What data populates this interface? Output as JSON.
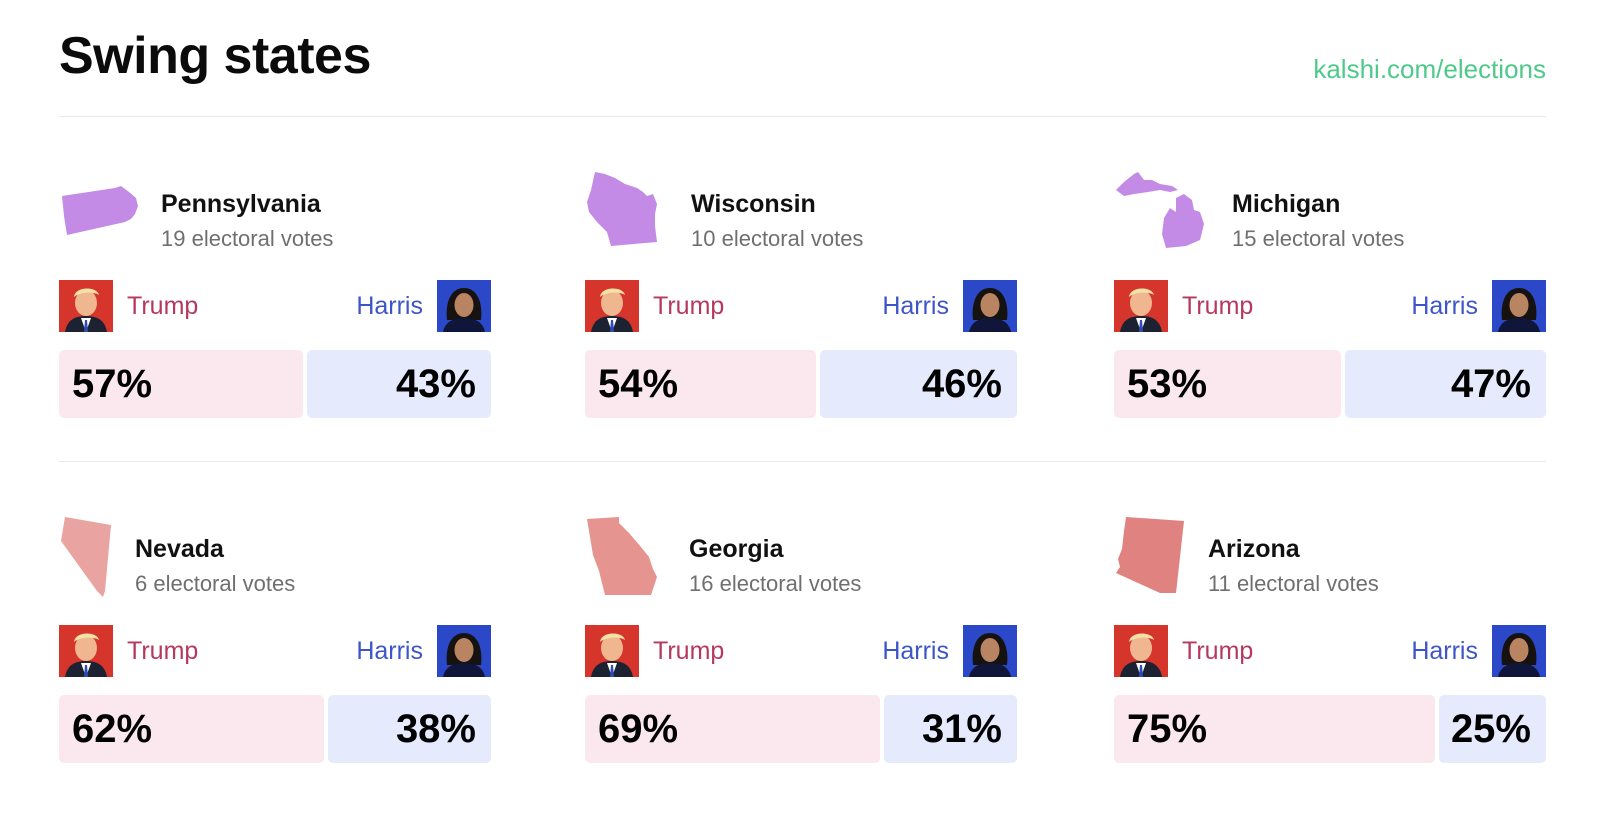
{
  "header": {
    "title": "Swing states",
    "site": "kalshi.com/elections"
  },
  "colors": {
    "trump_text": "#b5395e",
    "harris_text": "#3d55c8",
    "trump_bar": "#fbe8ee",
    "harris_bar": "#e5ebfd",
    "link": "#4fc98a",
    "state_purple": "#c38ae6",
    "state_red": "#e79b98"
  },
  "states": [
    {
      "name": "Pennsylvania",
      "votes": "19 electoral votes",
      "trump_name": "Trump",
      "harris_name": "Harris",
      "trump_pct": "57%",
      "harris_pct": "43%",
      "trump_share": 0.57,
      "shape_color": "#c38ae6",
      "shape_icon": "pennsylvania-shape-icon"
    },
    {
      "name": "Wisconsin",
      "votes": "10 electoral votes",
      "trump_name": "Trump",
      "harris_name": "Harris",
      "trump_pct": "54%",
      "harris_pct": "46%",
      "trump_share": 0.54,
      "shape_color": "#c38ae6",
      "shape_icon": "wisconsin-shape-icon"
    },
    {
      "name": "Michigan",
      "votes": "15 electoral votes",
      "trump_name": "Trump",
      "harris_name": "Harris",
      "trump_pct": "53%",
      "harris_pct": "47%",
      "trump_share": 0.53,
      "shape_color": "#c38ae6",
      "shape_icon": "michigan-shape-icon"
    },
    {
      "name": "Nevada",
      "votes": "6 electoral votes",
      "trump_name": "Trump",
      "harris_name": "Harris",
      "trump_pct": "62%",
      "harris_pct": "38%",
      "trump_share": 0.62,
      "shape_color": "#e9a3a0",
      "shape_icon": "nevada-shape-icon"
    },
    {
      "name": "Georgia",
      "votes": "16 electoral votes",
      "trump_name": "Trump",
      "harris_name": "Harris",
      "trump_pct": "69%",
      "harris_pct": "31%",
      "trump_share": 0.69,
      "shape_color": "#e6948f",
      "shape_icon": "georgia-shape-icon"
    },
    {
      "name": "Arizona",
      "votes": "11 electoral votes",
      "trump_name": "Trump",
      "harris_name": "Harris",
      "trump_pct": "75%",
      "harris_pct": "25%",
      "trump_share": 0.75,
      "shape_color": "#e0827f",
      "shape_icon": "arizona-shape-icon"
    }
  ]
}
